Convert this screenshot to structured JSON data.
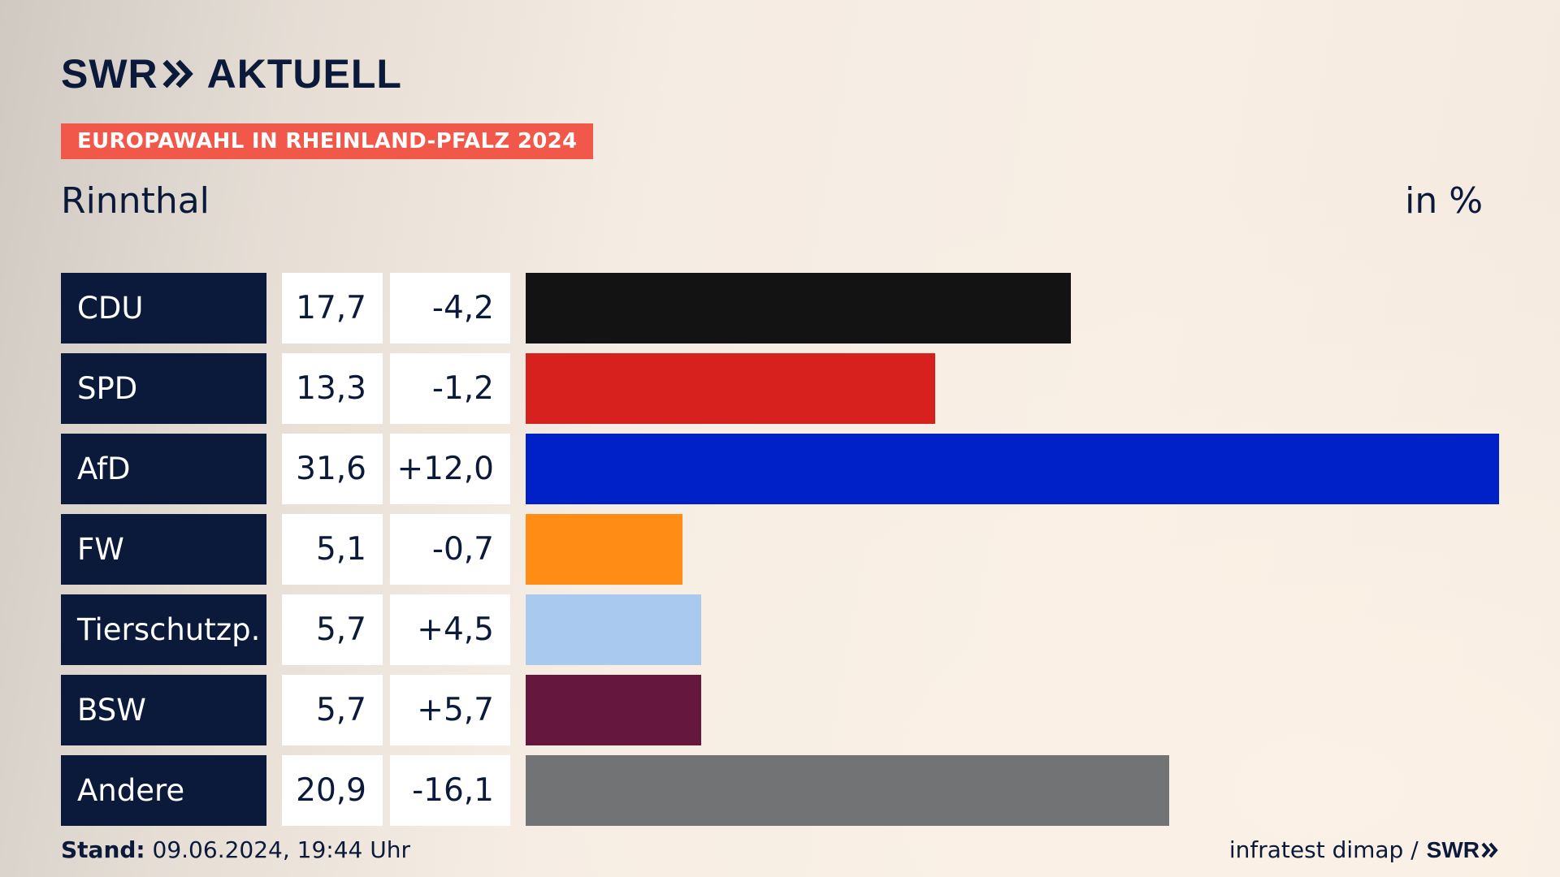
{
  "header": {
    "brand_left": "SWR",
    "brand_right": "AKTUELL",
    "badge": "EUROPAWAHL IN RHEINLAND-PFALZ 2024",
    "region": "Rinnthal",
    "unit": "in %"
  },
  "colors": {
    "navy": "#0b1a3a",
    "badge": "#f2584a"
  },
  "chart_data": {
    "type": "bar",
    "orientation": "horizontal",
    "xlim": [
      0,
      31.6
    ],
    "categories": [
      "CDU",
      "SPD",
      "AfD",
      "FW",
      "Tierschutzp.",
      "BSW",
      "Andere"
    ],
    "values": [
      17.7,
      13.3,
      31.6,
      5.1,
      5.7,
      5.7,
      20.9
    ],
    "value_labels": [
      "17,7",
      "13,3",
      "31,6",
      "5,1",
      "5,7",
      "5,7",
      "20,9"
    ],
    "diff_labels": [
      "-4,2",
      "-1,2",
      "+12,0",
      "-0,7",
      "+4,5",
      "+5,7",
      "-16,1"
    ],
    "colors": [
      "#131313",
      "#d7211f",
      "#0021c8",
      "#ff8c15",
      "#aac9ef",
      "#66173d",
      "#717375"
    ]
  },
  "footer": {
    "stand_label": "Stand:",
    "stand_value": "09.06.2024, 19:44 Uhr",
    "source": "infratest dimap /",
    "source_brand": "SWR"
  }
}
